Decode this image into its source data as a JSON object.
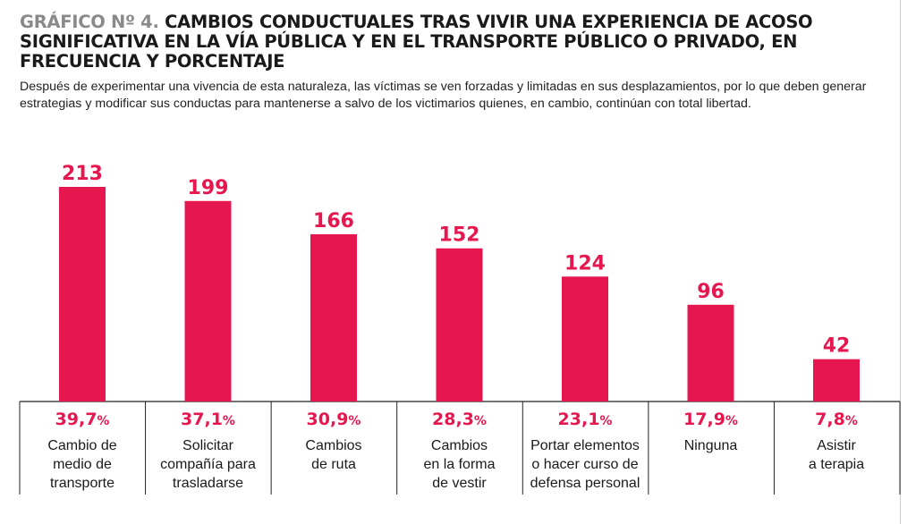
{
  "header": {
    "title_prefix": "GRÁFICO Nº 4.",
    "title_main": "CAMBIOS CONDUCTUALES TRAS VIVIR UNA EXPERIENCIA DE ACOSO SIGNIFICATIVA EN LA VÍA PÚBLICA Y EN EL TRANSPORTE PÚBLICO O PRIVADO, EN FRECUENCIA Y PORCENTAJE",
    "subtitle": "Después de experimentar una vivencia de esta naturaleza, las víctimas se ven forzadas y limitadas en sus desplazamientos, por lo que deben generar estrategias y modificar sus conductas para mantenerse a salvo de los victimarios quienes, en cambio, continúan con total libertad."
  },
  "colors": {
    "bar": "#e6174f",
    "axis": "#222222",
    "grey_title": "#8a8a8a"
  },
  "chart_data": {
    "type": "bar",
    "categories": [
      [
        "Cambio de",
        "medio de",
        "transporte"
      ],
      [
        "Solicitar",
        "compañía para",
        "trasladarse"
      ],
      [
        "Cambios",
        "de ruta"
      ],
      [
        "Cambios",
        "en la forma",
        "de vestir"
      ],
      [
        "Portar elementos",
        "o hacer curso de",
        "defensa personal"
      ],
      [
        "Ninguna"
      ],
      [
        "Asistir",
        "a terapia"
      ]
    ],
    "values": [
      213,
      199,
      166,
      152,
      124,
      96,
      42
    ],
    "value_labels": [
      "213",
      "199",
      "166",
      "152",
      "124",
      "96",
      "42"
    ],
    "percentages": [
      "39,7",
      "37,1",
      "30,9",
      "28,3",
      "23,1",
      "17,9",
      "7,8"
    ],
    "percent_sign": "%",
    "ylim": [
      0,
      213
    ],
    "grid": false,
    "legend": "none"
  }
}
